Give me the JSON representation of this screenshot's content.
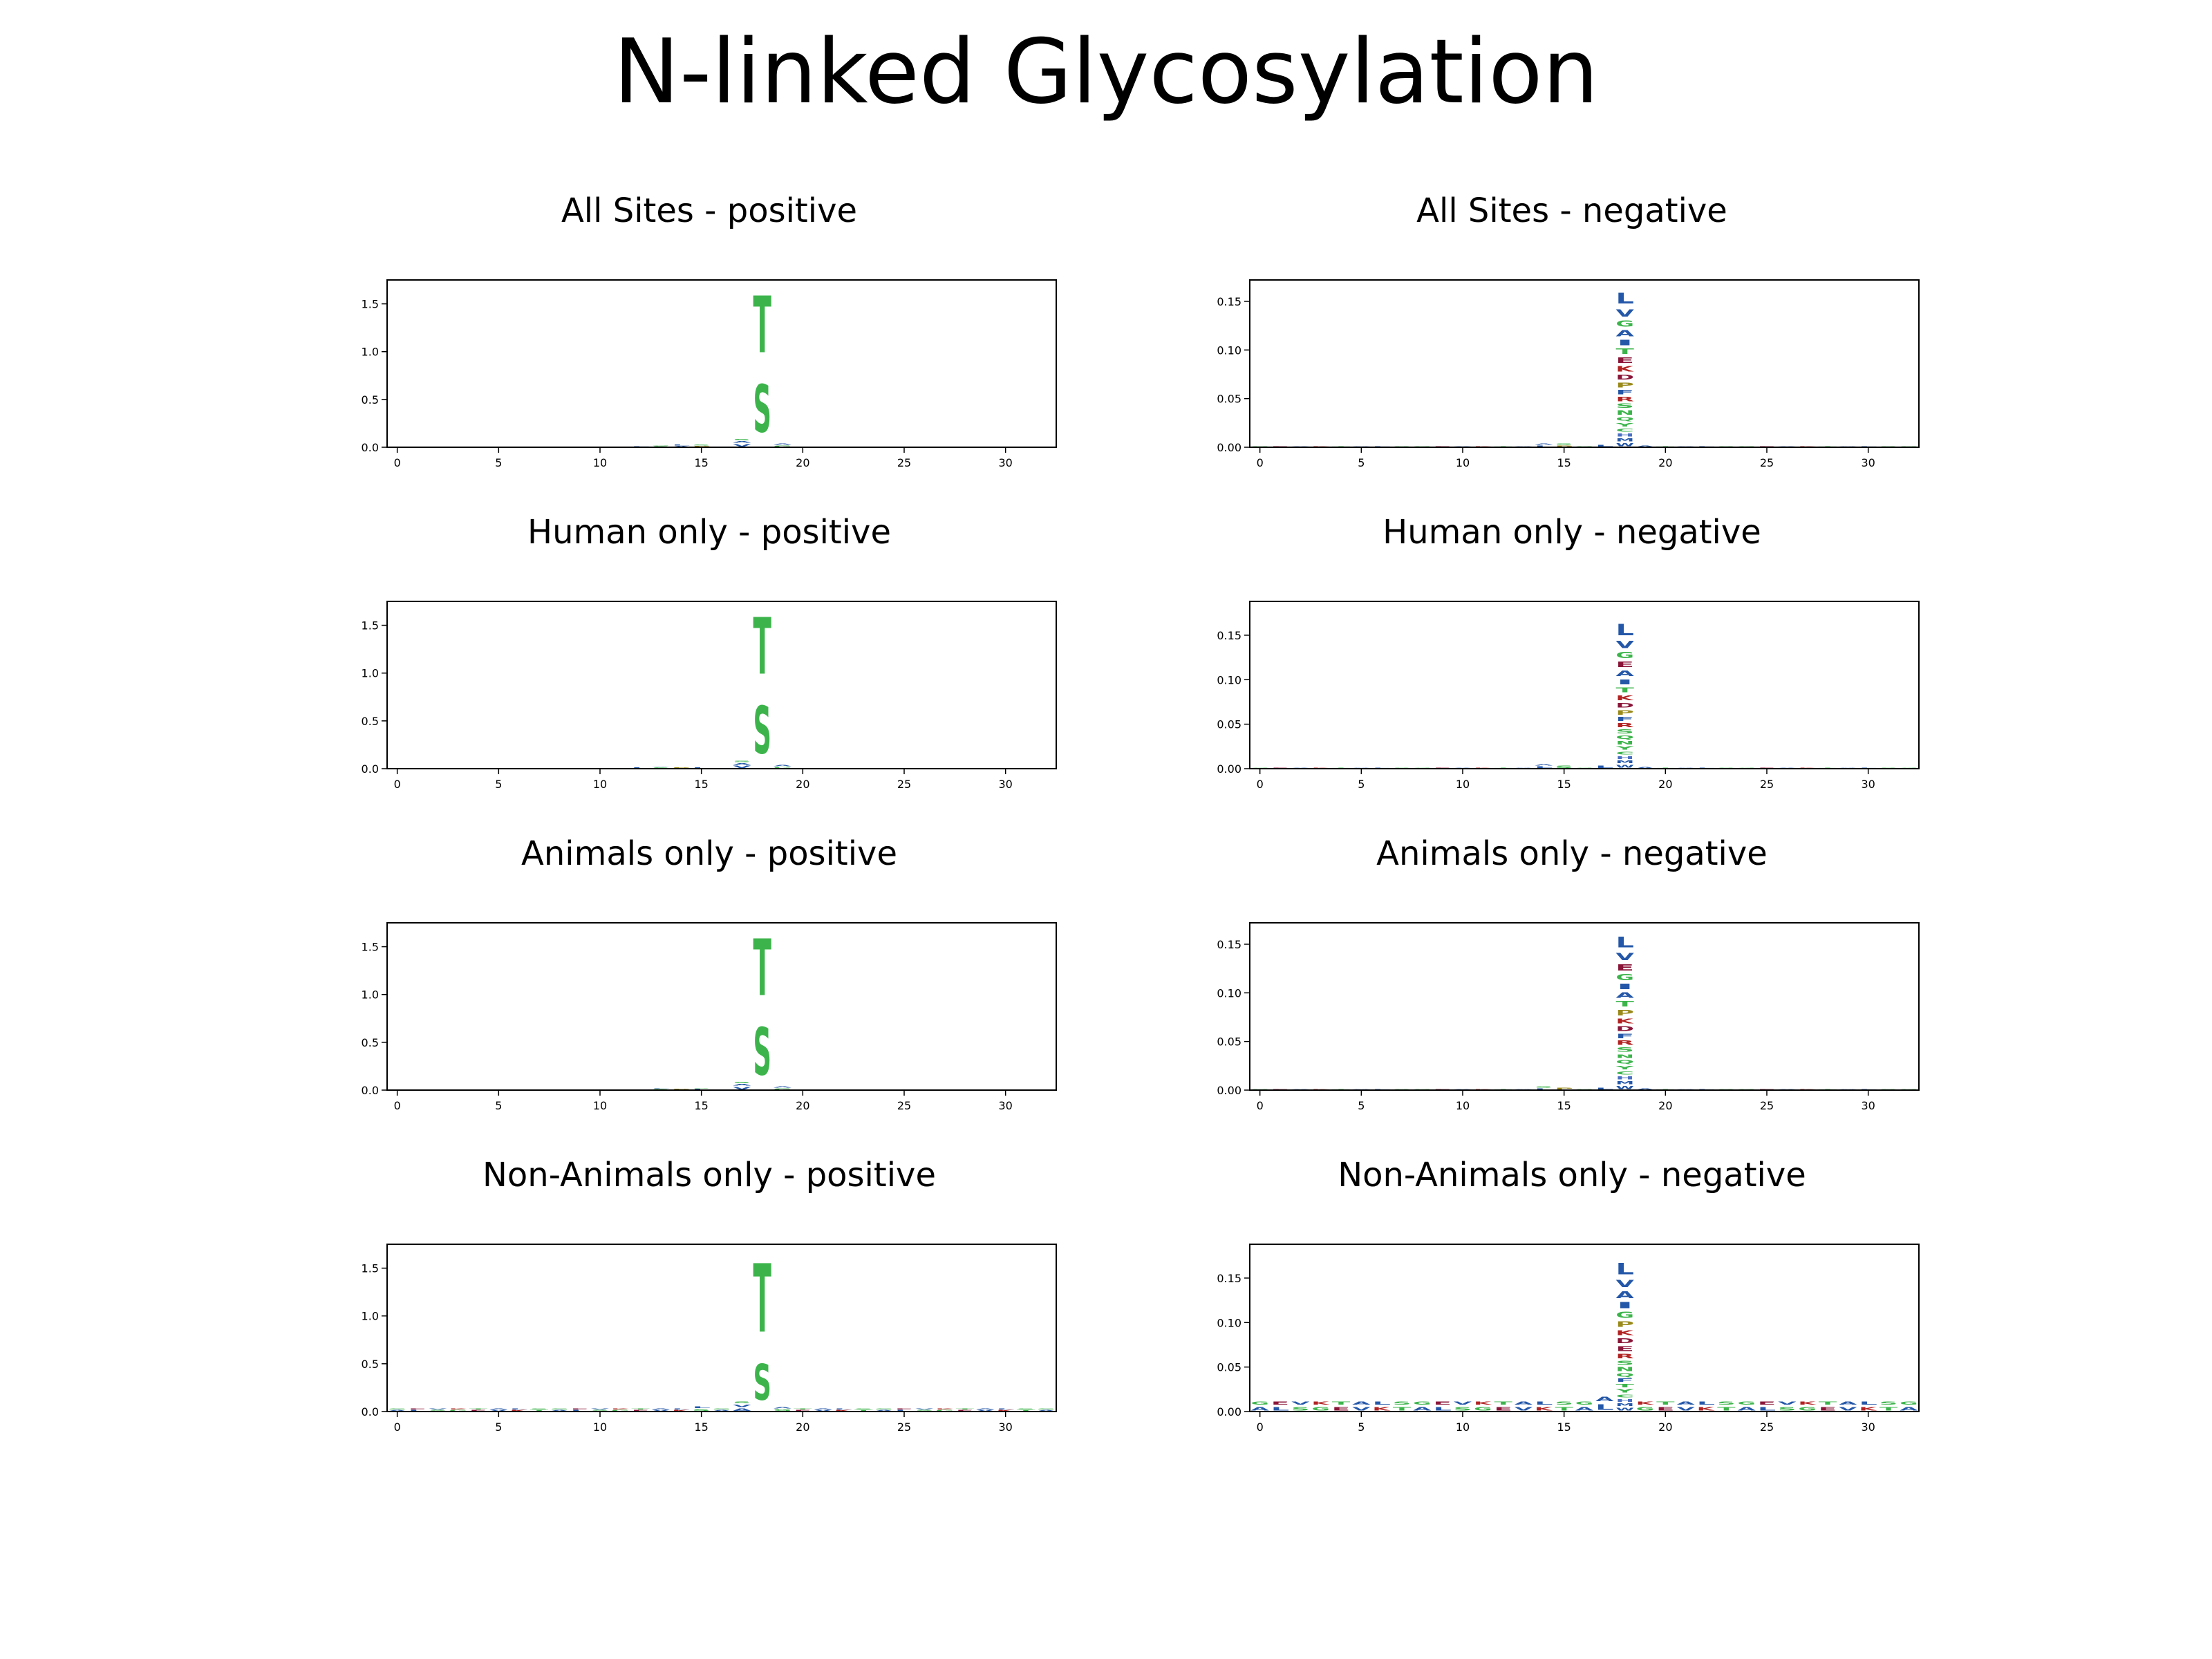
{
  "title": "N-linked Glycosylation",
  "colors": {
    "S": "#3cb44b",
    "T": "#3cb44b",
    "G": "#3cb44b",
    "N": "#3cb44b",
    "Q": "#3cb44b",
    "Y": "#3cb44b",
    "C": "#3cb44b",
    "K": "#b22222",
    "R": "#b22222",
    "H": "#4a6fc2",
    "D": "#8a1538",
    "E": "#8a1538",
    "L": "#2457a8",
    "V": "#2457a8",
    "A": "#2457a8",
    "I": "#2457a8",
    "F": "#2457a8",
    "M": "#2457a8",
    "W": "#2457a8",
    "P": "#9a8a1a"
  },
  "chart_data": [
    {
      "type": "sequence_logo",
      "title": "All Sites - positive",
      "xlim": [
        -0.5,
        32.5
      ],
      "ylim": [
        0,
        1.75
      ],
      "xticks": [
        0,
        5,
        10,
        15,
        20,
        25,
        30
      ],
      "xtick_labels": [
        "0",
        "5",
        "10",
        "15",
        "20",
        "25",
        "30"
      ],
      "yticks": [
        0.0,
        0.5,
        1.0,
        1.5
      ],
      "ytick_labels": [
        "0.0",
        "0.5",
        "1.0",
        "1.5"
      ],
      "background_level": 0.008,
      "positions": [
        {
          "x": 12,
          "stack": [
            [
              "A",
              0.01
            ],
            [
              "L",
              0.01
            ]
          ]
        },
        {
          "x": 13,
          "stack": [
            [
              "S",
              0.012
            ],
            [
              "G",
              0.01
            ]
          ]
        },
        {
          "x": 14,
          "stack": [
            [
              "A",
              0.015
            ],
            [
              "L",
              0.012
            ]
          ]
        },
        {
          "x": 15,
          "stack": [
            [
              "P",
              0.015
            ],
            [
              "S",
              0.012
            ]
          ]
        },
        {
          "x": 17,
          "stack": [
            [
              "V",
              0.04
            ],
            [
              "A",
              0.03
            ],
            [
              "S",
              0.02
            ]
          ]
        },
        {
          "x": 18,
          "stack": [
            [
              "S",
              0.8
            ],
            [
              "T",
              0.95
            ]
          ]
        },
        {
          "x": 19,
          "stack": [
            [
              "G",
              0.02
            ],
            [
              "A",
              0.02
            ]
          ]
        }
      ]
    },
    {
      "type": "sequence_logo",
      "title": "All Sites - negative",
      "xlim": [
        -0.5,
        32.5
      ],
      "ylim": [
        0,
        0.172
      ],
      "xticks": [
        0,
        5,
        10,
        15,
        20,
        25,
        30
      ],
      "xtick_labels": [
        "0",
        "5",
        "10",
        "15",
        "20",
        "25",
        "30"
      ],
      "yticks": [
        0.0,
        0.05,
        0.1,
        0.15
      ],
      "ytick_labels": [
        "0.00",
        "0.05",
        "0.10",
        "0.15"
      ],
      "background_level": 0.001,
      "positions": [
        {
          "x": 14,
          "stack": [
            [
              "L",
              0.002
            ],
            [
              "A",
              0.002
            ]
          ]
        },
        {
          "x": 15,
          "stack": [
            [
              "P",
              0.002
            ],
            [
              "S",
              0.002
            ]
          ]
        },
        {
          "x": 17,
          "stack": [
            [
              "L",
              0.003
            ]
          ]
        },
        {
          "x": 18,
          "stack": [
            [
              "W",
              0.005
            ],
            [
              "M",
              0.005
            ],
            [
              "H",
              0.005
            ],
            [
              "C",
              0.005
            ],
            [
              "Y",
              0.006
            ],
            [
              "Q",
              0.006
            ],
            [
              "N",
              0.007
            ],
            [
              "S",
              0.007
            ],
            [
              "R",
              0.007
            ],
            [
              "F",
              0.007
            ],
            [
              "P",
              0.008
            ],
            [
              "D",
              0.008
            ],
            [
              "K",
              0.009
            ],
            [
              "E",
              0.009
            ],
            [
              "T",
              0.009
            ],
            [
              "I",
              0.009
            ],
            [
              "A",
              0.01
            ],
            [
              "G",
              0.01
            ],
            [
              "V",
              0.012
            ],
            [
              "L",
              0.018
            ]
          ]
        },
        {
          "x": 19,
          "stack": [
            [
              "A",
              0.002
            ]
          ]
        }
      ]
    },
    {
      "type": "sequence_logo",
      "title": "Human only - positive",
      "xlim": [
        -0.5,
        32.5
      ],
      "ylim": [
        0,
        1.75
      ],
      "xticks": [
        0,
        5,
        10,
        15,
        20,
        25,
        30
      ],
      "xtick_labels": [
        "0",
        "5",
        "10",
        "15",
        "20",
        "25",
        "30"
      ],
      "yticks": [
        0.0,
        0.5,
        1.0,
        1.5
      ],
      "ytick_labels": [
        "0.0",
        "0.5",
        "1.0",
        "1.5"
      ],
      "background_level": 0.008,
      "positions": [
        {
          "x": 12,
          "stack": [
            [
              "L",
              0.012
            ]
          ]
        },
        {
          "x": 13,
          "stack": [
            [
              "S",
              0.012
            ],
            [
              "A",
              0.01
            ]
          ]
        },
        {
          "x": 14,
          "stack": [
            [
              "P",
              0.014
            ]
          ]
        },
        {
          "x": 15,
          "stack": [
            [
              "L",
              0.014
            ]
          ]
        },
        {
          "x": 17,
          "stack": [
            [
              "V",
              0.035
            ],
            [
              "A",
              0.03
            ],
            [
              "S",
              0.02
            ]
          ]
        },
        {
          "x": 18,
          "stack": [
            [
              "S",
              0.8
            ],
            [
              "T",
              0.95
            ]
          ]
        },
        {
          "x": 19,
          "stack": [
            [
              "G",
              0.02
            ],
            [
              "A",
              0.02
            ]
          ]
        }
      ]
    },
    {
      "type": "sequence_logo",
      "title": "Human only - negative",
      "xlim": [
        -0.5,
        32.5
      ],
      "ylim": [
        0,
        0.188
      ],
      "xticks": [
        0,
        5,
        10,
        15,
        20,
        25,
        30
      ],
      "xtick_labels": [
        "0",
        "5",
        "10",
        "15",
        "20",
        "25",
        "30"
      ],
      "yticks": [
        0.0,
        0.05,
        0.1,
        0.15
      ],
      "ytick_labels": [
        "0.00",
        "0.05",
        "0.10",
        "0.15"
      ],
      "background_level": 0.002,
      "positions": [
        {
          "x": 14,
          "stack": [
            [
              "L",
              0.003
            ],
            [
              "A",
              0.002
            ]
          ]
        },
        {
          "x": 15,
          "stack": [
            [
              "S",
              0.004
            ]
          ]
        },
        {
          "x": 17,
          "stack": [
            [
              "L",
              0.004
            ]
          ]
        },
        {
          "x": 18,
          "stack": [
            [
              "W",
              0.005
            ],
            [
              "M",
              0.005
            ],
            [
              "H",
              0.005
            ],
            [
              "C",
              0.005
            ],
            [
              "Y",
              0.006
            ],
            [
              "N",
              0.006
            ],
            [
              "Q",
              0.006
            ],
            [
              "S",
              0.007
            ],
            [
              "R",
              0.007
            ],
            [
              "F",
              0.007
            ],
            [
              "P",
              0.008
            ],
            [
              "D",
              0.008
            ],
            [
              "K",
              0.009
            ],
            [
              "T",
              0.009
            ],
            [
              "I",
              0.009
            ],
            [
              "A",
              0.01
            ],
            [
              "E",
              0.01
            ],
            [
              "G",
              0.011
            ],
            [
              "V",
              0.013
            ],
            [
              "L",
              0.02
            ]
          ]
        },
        {
          "x": 19,
          "stack": [
            [
              "A",
              0.002
            ]
          ]
        }
      ]
    },
    {
      "type": "sequence_logo",
      "title": "Animals only - positive",
      "xlim": [
        -0.5,
        32.5
      ],
      "ylim": [
        0,
        1.75
      ],
      "xticks": [
        0,
        5,
        10,
        15,
        20,
        25,
        30
      ],
      "xtick_labels": [
        "0",
        "5",
        "10",
        "15",
        "20",
        "25",
        "30"
      ],
      "yticks": [
        0.0,
        0.5,
        1.0,
        1.5
      ],
      "ytick_labels": [
        "0.0",
        "0.5",
        "1.0",
        "1.5"
      ],
      "background_level": 0.008,
      "positions": [
        {
          "x": 12,
          "stack": [
            [
              "A",
              0.01
            ]
          ]
        },
        {
          "x": 13,
          "stack": [
            [
              "S",
              0.012
            ],
            [
              "L",
              0.01
            ]
          ]
        },
        {
          "x": 14,
          "stack": [
            [
              "P",
              0.014
            ]
          ]
        },
        {
          "x": 15,
          "stack": [
            [
              "L",
              0.014
            ],
            [
              "S",
              0.01
            ]
          ]
        },
        {
          "x": 17,
          "stack": [
            [
              "V",
              0.04
            ],
            [
              "A",
              0.03
            ],
            [
              "S",
              0.02
            ]
          ]
        },
        {
          "x": 18,
          "stack": [
            [
              "S",
              0.8
            ],
            [
              "T",
              0.95
            ]
          ]
        },
        {
          "x": 19,
          "stack": [
            [
              "G",
              0.02
            ],
            [
              "A",
              0.02
            ]
          ]
        }
      ]
    },
    {
      "type": "sequence_logo",
      "title": "Animals only - negative",
      "xlim": [
        -0.5,
        32.5
      ],
      "ylim": [
        0,
        0.172
      ],
      "xticks": [
        0,
        5,
        10,
        15,
        20,
        25,
        30
      ],
      "xtick_labels": [
        "0",
        "5",
        "10",
        "15",
        "20",
        "25",
        "30"
      ],
      "yticks": [
        0.0,
        0.05,
        0.1,
        0.15
      ],
      "ytick_labels": [
        "0.00",
        "0.05",
        "0.10",
        "0.15"
      ],
      "background_level": 0.001,
      "positions": [
        {
          "x": 14,
          "stack": [
            [
              "L",
              0.002
            ],
            [
              "S",
              0.002
            ]
          ]
        },
        {
          "x": 15,
          "stack": [
            [
              "P",
              0.003
            ]
          ]
        },
        {
          "x": 17,
          "stack": [
            [
              "L",
              0.003
            ]
          ]
        },
        {
          "x": 18,
          "stack": [
            [
              "W",
              0.005
            ],
            [
              "M",
              0.005
            ],
            [
              "H",
              0.005
            ],
            [
              "C",
              0.005
            ],
            [
              "Y",
              0.006
            ],
            [
              "Q",
              0.006
            ],
            [
              "N",
              0.006
            ],
            [
              "S",
              0.007
            ],
            [
              "R",
              0.007
            ],
            [
              "F",
              0.007
            ],
            [
              "D",
              0.008
            ],
            [
              "K",
              0.008
            ],
            [
              "P",
              0.009
            ],
            [
              "T",
              0.009
            ],
            [
              "A",
              0.009
            ],
            [
              "I",
              0.009
            ],
            [
              "G",
              0.01
            ],
            [
              "E",
              0.01
            ],
            [
              "V",
              0.012
            ],
            [
              "L",
              0.018
            ]
          ]
        },
        {
          "x": 19,
          "stack": [
            [
              "A",
              0.002
            ]
          ]
        }
      ]
    },
    {
      "type": "sequence_logo",
      "title": "Non-Animals only - positive",
      "xlim": [
        -0.5,
        32.5
      ],
      "ylim": [
        0,
        1.75
      ],
      "xticks": [
        0,
        5,
        10,
        15,
        20,
        25,
        30
      ],
      "xtick_labels": [
        "0",
        "5",
        "10",
        "15",
        "20",
        "25",
        "30"
      ],
      "yticks": [
        0.0,
        0.5,
        1.0,
        1.5
      ],
      "ytick_labels": [
        "0.0",
        "0.5",
        "1.0",
        "1.5"
      ],
      "background_level": 0.035,
      "positions": [
        {
          "x": 15,
          "stack": [
            [
              "S",
              0.03
            ],
            [
              "L",
              0.03
            ]
          ]
        },
        {
          "x": 17,
          "stack": [
            [
              "A",
              0.04
            ],
            [
              "V",
              0.04
            ],
            [
              "S",
              0.03
            ]
          ]
        },
        {
          "x": 18,
          "stack": [
            [
              "S",
              0.6
            ],
            [
              "T",
              1.15
            ]
          ]
        },
        {
          "x": 19,
          "stack": [
            [
              "G",
              0.03
            ],
            [
              "A",
              0.02
            ]
          ]
        }
      ]
    },
    {
      "type": "sequence_logo",
      "title": "Non-Animals only - negative",
      "xlim": [
        -0.5,
        32.5
      ],
      "ylim": [
        0,
        0.188
      ],
      "xticks": [
        0,
        5,
        10,
        15,
        20,
        25,
        30
      ],
      "xtick_labels": [
        "0",
        "5",
        "10",
        "15",
        "20",
        "25",
        "30"
      ],
      "yticks": [
        0.0,
        0.05,
        0.1,
        0.15
      ],
      "ytick_labels": [
        "0.00",
        "0.05",
        "0.10",
        "0.15"
      ],
      "background_level": 0.012,
      "positions": [
        {
          "x": 17,
          "stack": [
            [
              "L",
              0.01
            ],
            [
              "A",
              0.008
            ]
          ]
        },
        {
          "x": 18,
          "stack": [
            [
              "W",
              0.005
            ],
            [
              "M",
              0.005
            ],
            [
              "H",
              0.005
            ],
            [
              "C",
              0.005
            ],
            [
              "Y",
              0.006
            ],
            [
              "T",
              0.006
            ],
            [
              "F",
              0.006
            ],
            [
              "Q",
              0.006
            ],
            [
              "N",
              0.007
            ],
            [
              "S",
              0.007
            ],
            [
              "R",
              0.008
            ],
            [
              "E",
              0.009
            ],
            [
              "D",
              0.009
            ],
            [
              "K",
              0.009
            ],
            [
              "P",
              0.01
            ],
            [
              "G",
              0.011
            ],
            [
              "I",
              0.011
            ],
            [
              "A",
              0.012
            ],
            [
              "V",
              0.013
            ],
            [
              "L",
              0.02
            ]
          ]
        }
      ]
    }
  ]
}
